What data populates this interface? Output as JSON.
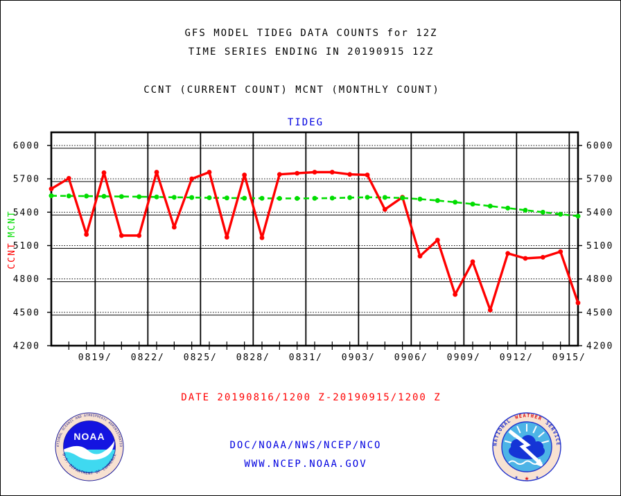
{
  "page": {
    "titles": {
      "line1": "GFS MODEL TIDEG DATA COUNTS for 12Z",
      "line2": "TIME SERIES ENDING IN 20190915 12Z",
      "line3": "CCNT (CURRENT COUNT) MCNT (MONTHLY COUNT)"
    },
    "footer": {
      "date_range": "DATE 20190816/1200 Z-20190915/1200 Z",
      "org": "DOC/NOAA/NWS/NCEP/NCO",
      "url": "WWW.NCEP.NOAA.GOV"
    }
  },
  "chart_data": {
    "type": "line",
    "title": "TIDEG",
    "xlabel": "",
    "ylabel_left": "CCNT  MCNT",
    "x": [
      "0816",
      "0817",
      "0818",
      "0819",
      "0820",
      "0821",
      "0822",
      "0823",
      "0824",
      "0825",
      "0826",
      "0827",
      "0828",
      "0829",
      "0830",
      "0831",
      "0901",
      "0902",
      "0903",
      "0904",
      "0905",
      "0906",
      "0907",
      "0908",
      "0909",
      "0910",
      "0911",
      "0912",
      "0913",
      "0914",
      "0915"
    ],
    "x_note": "daily values at 1200Z from 20190816 to 20190915",
    "series": [
      {
        "name": "CCNT",
        "color": "#ff0000",
        "style": "solid",
        "values": [
          5610,
          5705,
          5200,
          5755,
          5190,
          5190,
          5760,
          5265,
          5700,
          5760,
          5175,
          5735,
          5170,
          5740,
          5750,
          5760,
          5760,
          5740,
          5735,
          5425,
          5535,
          5005,
          5150,
          4660,
          4955,
          4520,
          5030,
          4985,
          4995,
          5045,
          4585
        ]
      },
      {
        "name": "MCNT",
        "color": "#00dd00",
        "style": "dashed",
        "values": [
          5548,
          5546,
          5545,
          5543,
          5541,
          5539,
          5537,
          5534,
          5532,
          5530,
          5528,
          5526,
          5525,
          5524,
          5524,
          5525,
          5527,
          5531,
          5534,
          5533,
          5528,
          5518,
          5505,
          5490,
          5473,
          5455,
          5437,
          5418,
          5400,
          5382,
          5365
        ]
      }
    ],
    "ylim": [
      4200,
      6000
    ],
    "yticks": [
      4200,
      4500,
      4800,
      5100,
      5400,
      5700,
      6000
    ],
    "xtick_labels": [
      "0819/",
      "0822/",
      "0825/",
      "0828/",
      "0831/",
      "0903/",
      "0906/",
      "0909/",
      "0912/",
      "0915/"
    ],
    "grid": "on",
    "legend_position": "none"
  },
  "logos": {
    "noaa": {
      "ring_top": "NATIONAL OCEANIC AND ATMOSPHERIC ADMINISTRATION",
      "ring_bottom": "U.S. DEPARTMENT OF COMMERCE",
      "acronym": "NOAA"
    },
    "nws": {
      "word1": "NATIONAL",
      "word2": "WEATHER",
      "word3": "SERVICE",
      "star": "★"
    }
  }
}
